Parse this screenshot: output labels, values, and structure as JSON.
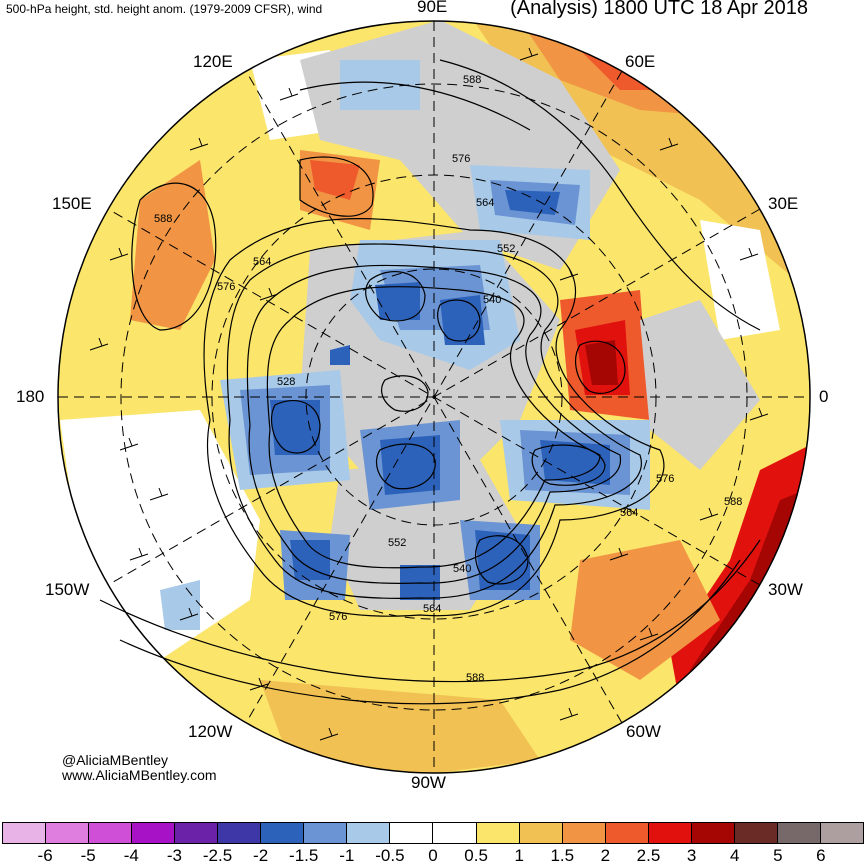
{
  "header": {
    "left_title": "500-hPa height, std. height anom. (1979-2009 CFSR), wind",
    "right_title": "(Analysis) 1800 UTC 18 Apr 2018"
  },
  "credit": {
    "line1": "@AliciaMBentley",
    "line2": "www.AliciaMBentley.com"
  },
  "longitude_labels": {
    "e90": "90E",
    "e60": "60E",
    "e30": "30E",
    "zero": "0",
    "w30": "30W",
    "w60": "60W",
    "w90": "90W",
    "w120": "120W",
    "w150": "150W",
    "lon180": "180",
    "e150": "150E",
    "e120": "120E"
  },
  "contour_labels": {
    "c1": "588",
    "c2": "576",
    "c3": "564",
    "c4": "552",
    "c5": "540",
    "c6": "588",
    "c7": "564",
    "c8": "576",
    "c9": "528",
    "c10": "576",
    "c11": "564",
    "c12": "588",
    "c13": "552",
    "c14": "540",
    "c15": "564",
    "c16": "576",
    "c17": "588"
  },
  "colorbar": {
    "colors": [
      "#e8b4e8",
      "#e07ee0",
      "#cf4fd6",
      "#a812c6",
      "#6c22a8",
      "#3e37a8",
      "#2d62bb",
      "#6a94d3",
      "#a8c9e7",
      "#ffffff",
      "#ffffff",
      "#fbe56b",
      "#f2c153",
      "#f19544",
      "#ef5a2d",
      "#e1120e",
      "#a50604",
      "#6a2a26",
      "#77686a",
      "#ad9f9f"
    ],
    "ticks": [
      "-6",
      "-5",
      "-4",
      "-3",
      "-2.5",
      "-2",
      "-1.5",
      "-1",
      "-0.5",
      "0",
      "0.5",
      "1",
      "1.5",
      "2",
      "2.5",
      "3",
      "4",
      "5",
      "6"
    ]
  }
}
